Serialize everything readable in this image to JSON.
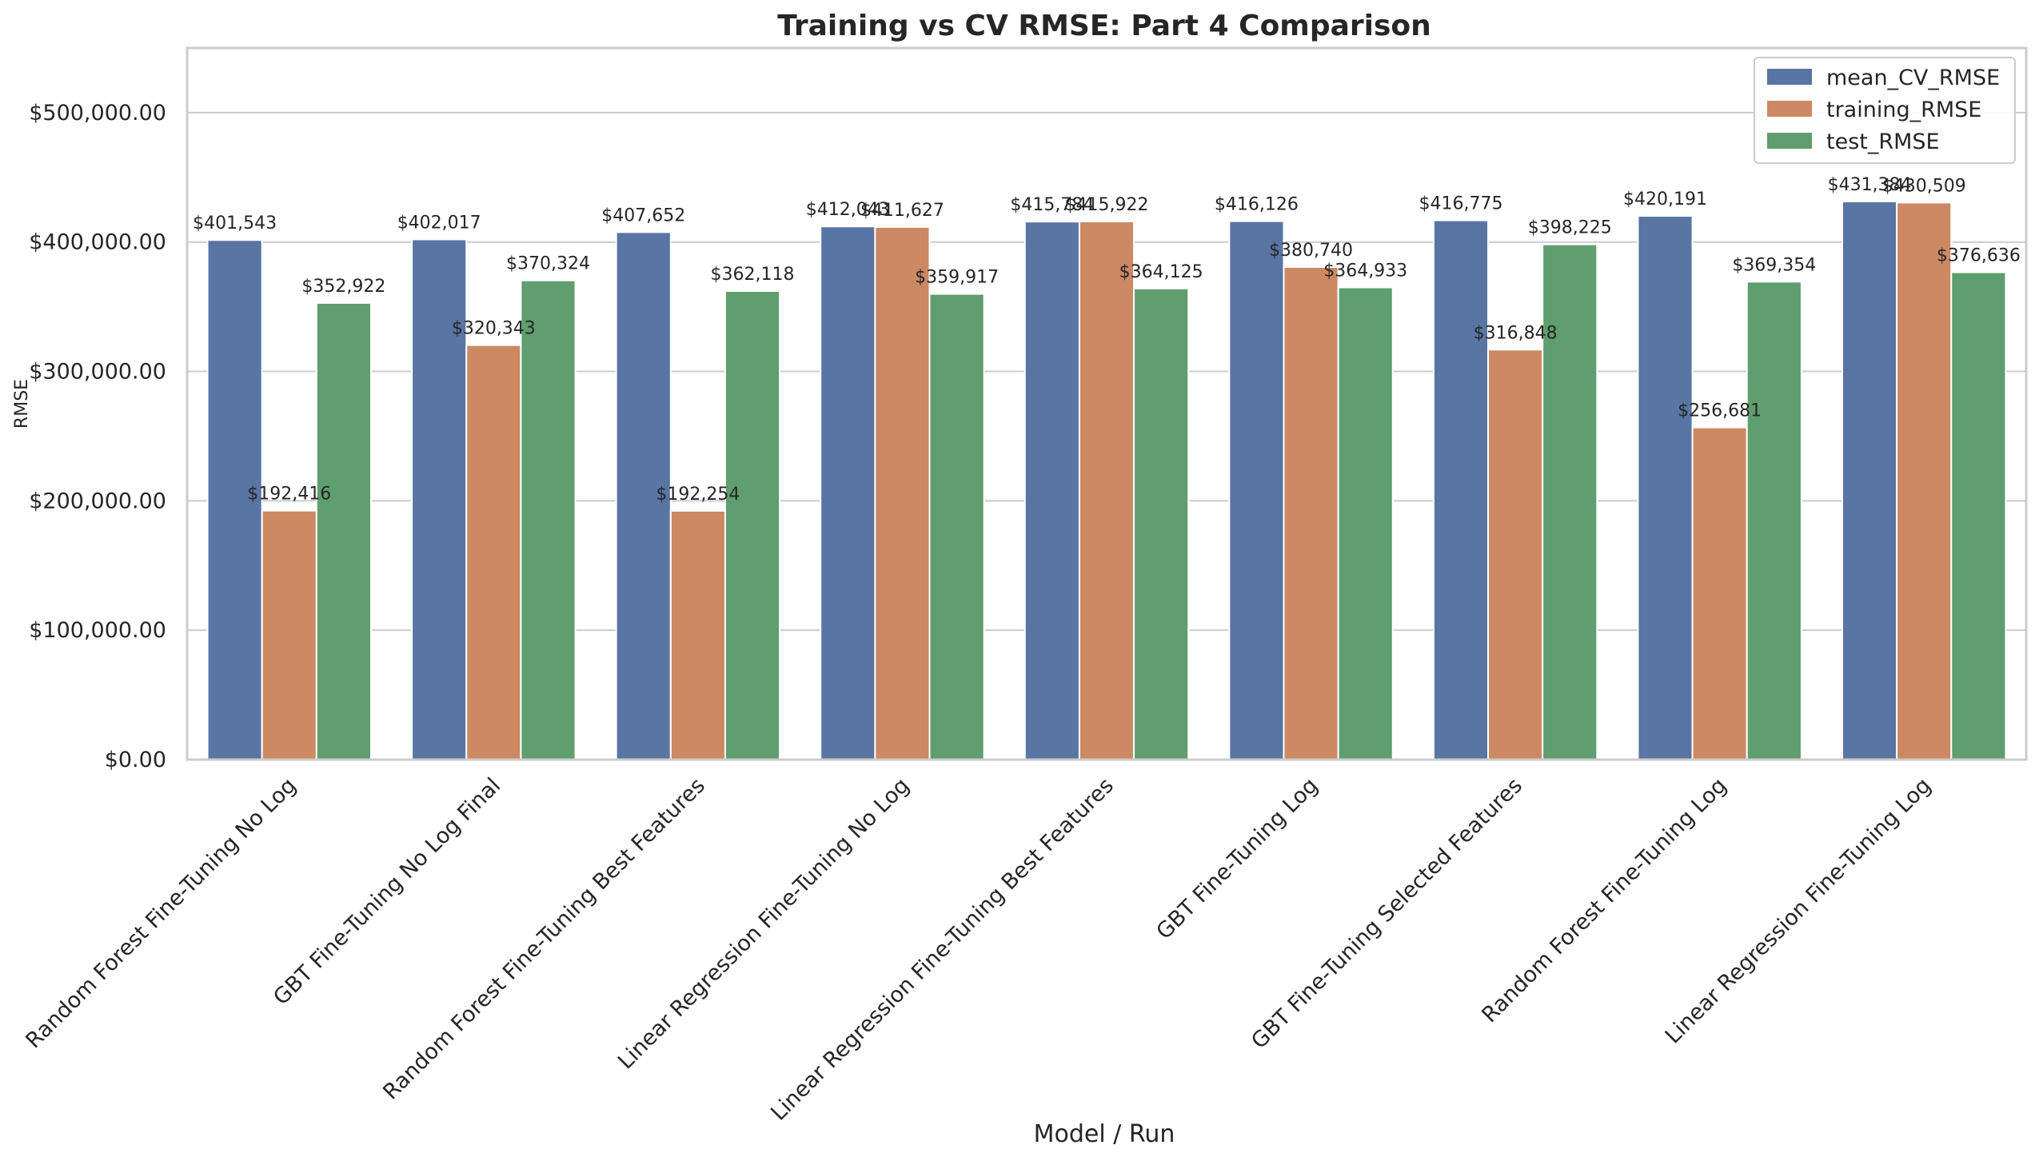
{
  "chart_data": {
    "type": "bar",
    "title": "Training vs CV RMSE: Part 4 Comparison",
    "xlabel": "Model / Run",
    "ylabel": "RMSE",
    "ylim": [
      0,
      550000
    ],
    "yticks": [
      0,
      100000,
      200000,
      300000,
      400000,
      500000
    ],
    "ytick_labels": [
      "$0.00",
      "$100,000.00",
      "$200,000.00",
      "$300,000.00",
      "$400,000.00",
      "$500,000.00"
    ],
    "grid": "horizontal",
    "legend_position": "top-right",
    "categories": [
      "Random Forest Fine-Tuning No Log",
      "GBT Fine-Tuning No Log Final",
      "Random Forest Fine-Tuning Best Features",
      "Linear Regression Fine-Tuning No Log",
      "Linear Regression Fine-Tuning Best Features",
      "GBT Fine-Tuning Log",
      "GBT Fine-Tuning Selected Features",
      "Random Forest Fine-Tuning Log",
      "Linear Regression Fine-Tuning Log"
    ],
    "series": [
      {
        "name": "mean_CV_RMSE",
        "color": "#5875a4",
        "values": [
          401543,
          402017,
          407652,
          412043,
          415784,
          416126,
          416775,
          420191,
          431384
        ],
        "labels": [
          "$401,543",
          "$402,017",
          "$407,652",
          "$412,043",
          "$415,784",
          "$416,126",
          "$416,775",
          "$420,191",
          "$431,384"
        ]
      },
      {
        "name": "training_RMSE",
        "color": "#cc8963",
        "values": [
          192416,
          320343,
          192254,
          411627,
          415922,
          380740,
          316848,
          256681,
          430509
        ],
        "labels": [
          "$192,416",
          "$320,343",
          "$192,254",
          "$411,627",
          "$415,922",
          "$380,740",
          "$316,848",
          "$256,681",
          "$430,509"
        ]
      },
      {
        "name": "test_RMSE",
        "color": "#5f9e6e",
        "values": [
          352922,
          370324,
          362118,
          359917,
          364125,
          364933,
          398225,
          369354,
          376636
        ],
        "labels": [
          "$352,922",
          "$370,324",
          "$362,118",
          "$359,917",
          "$364,125",
          "$364,933",
          "$398,225",
          "$369,354",
          "$376,636"
        ]
      }
    ]
  }
}
